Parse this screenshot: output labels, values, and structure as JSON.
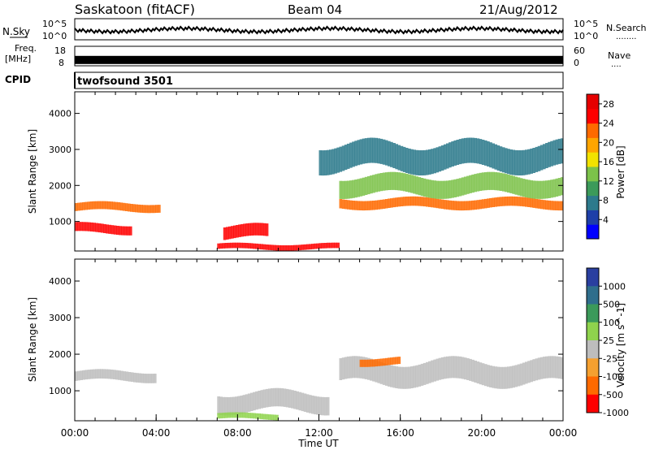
{
  "header": {
    "title": "Saskatoon (fitACF)",
    "beam": "Beam 04",
    "date": "21/Aug/2012"
  },
  "nsky": {
    "label": "N.Sky",
    "tick_labels": [
      "10^5",
      "10^0"
    ],
    "right_tick_labels": [
      "10^5",
      "10^0"
    ],
    "right_label": "N.Search",
    "right_dots": "........"
  },
  "freq": {
    "label_top": "Freq.",
    "label_bottom": "[MHz]",
    "tick_labels": [
      "18",
      "8"
    ],
    "right_tick_labels": [
      "60",
      "0"
    ],
    "right_label": "Nave",
    "right_dots": "....",
    "value_mhz": 11
  },
  "cpid": {
    "label": "CPID",
    "value": "twofsound 3501"
  },
  "chart_data": [
    {
      "type": "heatmap",
      "panel": "power",
      "xlabel": "",
      "ylabel": "Slant Range [km]",
      "y_ticks": [
        "4000",
        "3000",
        "2000",
        "1000"
      ],
      "ylim": [
        180,
        4600
      ],
      "xlim_hours": [
        0,
        24
      ],
      "colorbar": {
        "label": "Power [dB]",
        "tick_labels": [
          "28",
          "24",
          "20",
          "16",
          "12",
          "8",
          "4"
        ],
        "range": [
          0,
          30
        ],
        "colors": [
          "#0000ff",
          "#1e3fa8",
          "#2d7a8c",
          "#3c9a5a",
          "#7cc24a",
          "#f2e200",
          "#ffa500",
          "#ff6a00",
          "#ff0000",
          "#e60000"
        ]
      },
      "bands": [
        {
          "t_start": 0.0,
          "t_end": 4.2,
          "range_center": 1400,
          "width": 220,
          "value": 24
        },
        {
          "t_start": 0.0,
          "t_end": 2.8,
          "range_center": 800,
          "width": 250,
          "value": 26
        },
        {
          "t_start": 7.3,
          "t_end": 9.5,
          "range_center": 700,
          "width": 350,
          "value": 27
        },
        {
          "t_start": 7.0,
          "t_end": 13.0,
          "range_center": 300,
          "width": 150,
          "value": 26
        },
        {
          "t_start": 13.0,
          "t_end": 24.0,
          "range_center": 1500,
          "width": 260,
          "value": 22
        },
        {
          "t_start": 13.0,
          "t_end": 24.0,
          "range_center": 2000,
          "width": 500,
          "value": 12
        },
        {
          "t_start": 12.0,
          "t_end": 24.0,
          "range_center": 2800,
          "width": 700,
          "value": 6
        }
      ]
    },
    {
      "type": "heatmap",
      "panel": "velocity",
      "xlabel": "Time UT",
      "ylabel": "Slant Range [km]",
      "x_ticks": [
        "00:00",
        "04:00",
        "08:00",
        "12:00",
        "16:00",
        "20:00",
        "00:00"
      ],
      "y_ticks": [
        "4000",
        "3000",
        "2000",
        "1000"
      ],
      "ylim": [
        180,
        4600
      ],
      "xlim_hours": [
        0,
        24
      ],
      "colorbar": {
        "label": "Velocity [m s^-1]",
        "tick_labels": [
          "1000",
          "500",
          "100",
          "25",
          "-25",
          "-100",
          "-500",
          "-1000"
        ],
        "colors": [
          "#2a3fa0",
          "#2f6e8c",
          "#3b9a5a",
          "#8fd34d",
          "#bdbdbd",
          "#f5a030",
          "#ff6a00",
          "#ff0000"
        ]
      },
      "bands": [
        {
          "t_start": 0.0,
          "t_end": 4.0,
          "range_center": 1400,
          "width": 260,
          "value": 0
        },
        {
          "t_start": 7.0,
          "t_end": 12.5,
          "range_center": 700,
          "width": 500,
          "value": 0
        },
        {
          "t_start": 13.0,
          "t_end": 24.0,
          "range_center": 1500,
          "width": 600,
          "value": 0
        },
        {
          "t_start": 7.0,
          "t_end": 10.0,
          "range_center": 300,
          "width": 150,
          "value": 60
        },
        {
          "t_start": 14.0,
          "t_end": 16.0,
          "range_center": 1800,
          "width": 200,
          "value": -100
        }
      ]
    }
  ]
}
